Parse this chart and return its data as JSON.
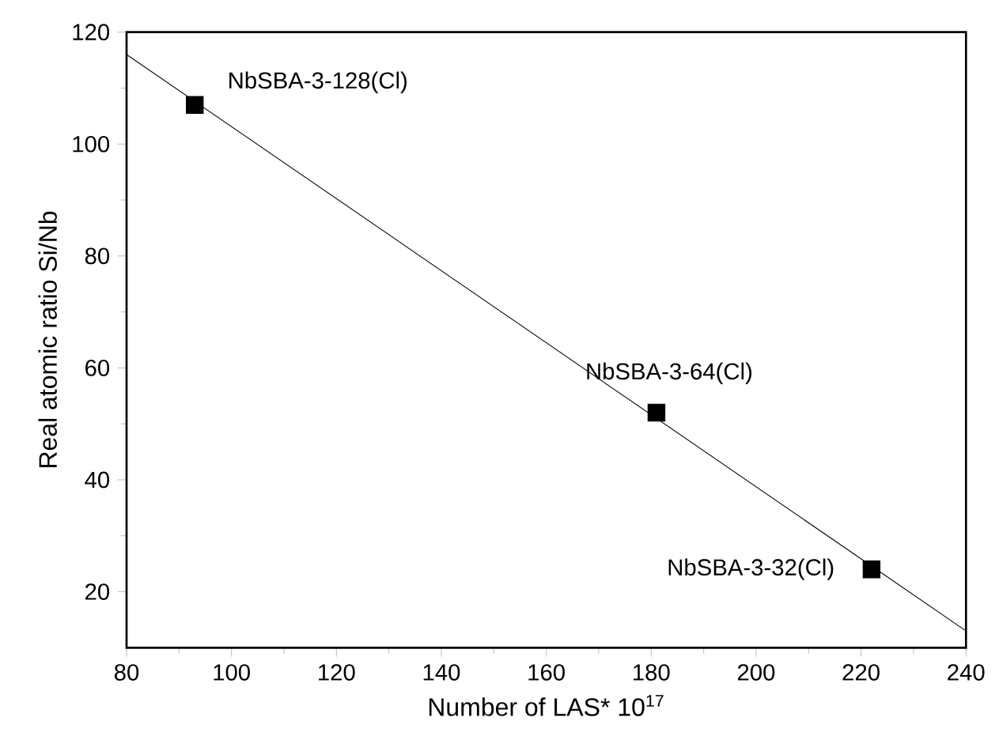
{
  "chart_data": {
    "type": "scatter",
    "xlabel": "Number of LAS* 10$^{17}$",
    "ylabel": "Real atomic ratio Si/Nb",
    "xlim": [
      80,
      240
    ],
    "ylim": [
      10,
      120
    ],
    "xticks": [
      80,
      100,
      120,
      140,
      160,
      180,
      200,
      220,
      240
    ],
    "yticks": [
      20,
      40,
      60,
      80,
      100,
      120
    ],
    "grid": false,
    "marker": "square",
    "series": [
      {
        "color": "#000000",
        "x": [
          93,
          181,
          222
        ],
        "values": [
          107,
          52,
          24
        ]
      },
      {
        "type": "line",
        "color": "#000000",
        "marker": "none",
        "line_style": "solid",
        "x": [
          80,
          240
        ],
        "values": [
          116,
          13
        ]
      }
    ],
    "annotations": [
      {
        "text": "NbSBA-3-128(Cl)",
        "x": 93,
        "y": 107
      },
      {
        "text": "NbSBA-3-64(Cl)",
        "x": 181,
        "y": 52
      },
      {
        "text": "NbSBA-3-32(Cl)",
        "x": 222,
        "y": 24
      }
    ]
  }
}
